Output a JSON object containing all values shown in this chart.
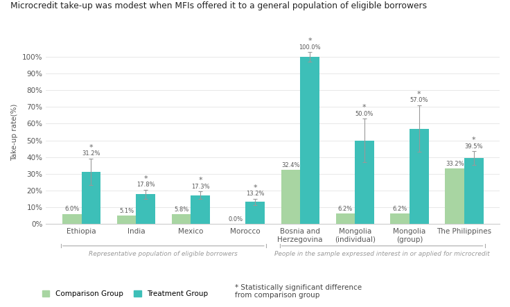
{
  "title": "Microcredit take-up was modest when MFIs offered it to a general population of eligible borrowers",
  "ylabel": "Take-up rate(%)",
  "categories": [
    "Ethiopia",
    "India",
    "Mexico",
    "Morocco",
    "Bosnia and\nHerzegovina",
    "Mongolia\n(individual)",
    "Mongolia\n(group)",
    "The Philippines"
  ],
  "comparison_values": [
    6.0,
    5.1,
    5.8,
    0.0,
    32.4,
    6.2,
    6.2,
    33.2
  ],
  "treatment_values": [
    31.2,
    17.8,
    17.3,
    13.2,
    100.0,
    50.0,
    57.0,
    39.5
  ],
  "comparison_color": "#a8d5a2",
  "treatment_color": "#3dbfb8",
  "treatment_errors": [
    8.0,
    2.8,
    2.2,
    2.0,
    2.8,
    13.0,
    14.0,
    4.0
  ],
  "significant": [
    true,
    true,
    true,
    true,
    true,
    true,
    true,
    true
  ],
  "group1_label": "Representative population of eligible borrowers",
  "group2_label": "People in the sample expressed interest in or applied for microcredit",
  "background_color": "#ffffff",
  "legend_comparison": "Comparison Group",
  "legend_treatment": "Treatment Group",
  "legend_star": "* Statistically significant difference\nfrom comparison group",
  "ytick_labels": [
    "0%",
    "10%",
    "20%",
    "30%",
    "40%",
    "50%",
    "60%",
    "70%",
    "80%",
    "90%",
    "100%"
  ],
  "ylim": [
    0,
    110
  ]
}
